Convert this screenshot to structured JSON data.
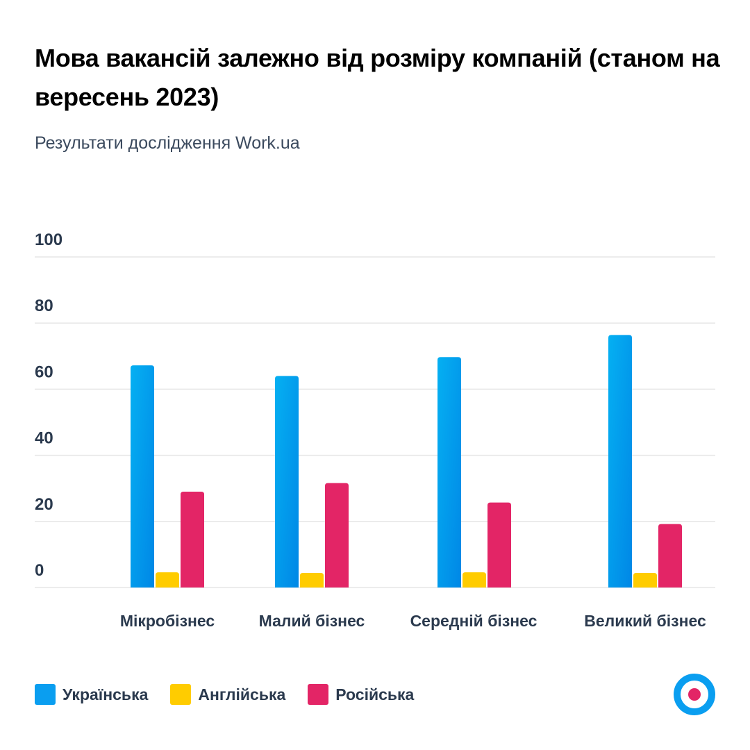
{
  "header": {
    "title": "Мова вакансій залежно від розміру компаній (станом на вересень 2023)",
    "subtitle": "Результати дослідження Work.ua"
  },
  "colors": {
    "ukrainian": "#0a9ef0",
    "ukrainian_dark": "#0087e6",
    "ukrainian_light": "#05b0f2",
    "english": "#ffcc00",
    "russian": "#e32566",
    "grid": "#e6e6e6",
    "text": "#2b3a4e",
    "logo_ring": "#0a9ef0",
    "logo_dot": "#e32566"
  },
  "chart_data": {
    "type": "bar",
    "title": "Мова вакансій залежно від розміру компаній (станом на вересень 2023)",
    "subtitle": "Результати дослідження Work.ua",
    "xlabel": "",
    "ylabel": "",
    "ylim": [
      0,
      100
    ],
    "yticks": [
      0,
      20,
      40,
      60,
      80,
      100
    ],
    "grid": true,
    "legend_position": "bottom-left",
    "categories": [
      "Мікробізнес",
      "Малий бізнес",
      "Середній бізнес",
      "Великий бізнес"
    ],
    "series": [
      {
        "name": "Українська",
        "color": "#0a9ef0",
        "values": [
          67.2,
          64,
          69.7,
          76.4
        ]
      },
      {
        "name": "Англійська",
        "color": "#ffcc00",
        "values": [
          4.6,
          4.4,
          4.6,
          4.4
        ]
      },
      {
        "name": "Російська",
        "color": "#e32566",
        "values": [
          29,
          31.6,
          25.7,
          19.2
        ]
      }
    ]
  },
  "legend": [
    {
      "label": "Українська",
      "color": "#0a9ef0"
    },
    {
      "label": "Англійська",
      "color": "#ffcc00"
    },
    {
      "label": "Російська",
      "color": "#e32566"
    }
  ],
  "logo": {
    "icon": "work-ua-logo-icon"
  }
}
